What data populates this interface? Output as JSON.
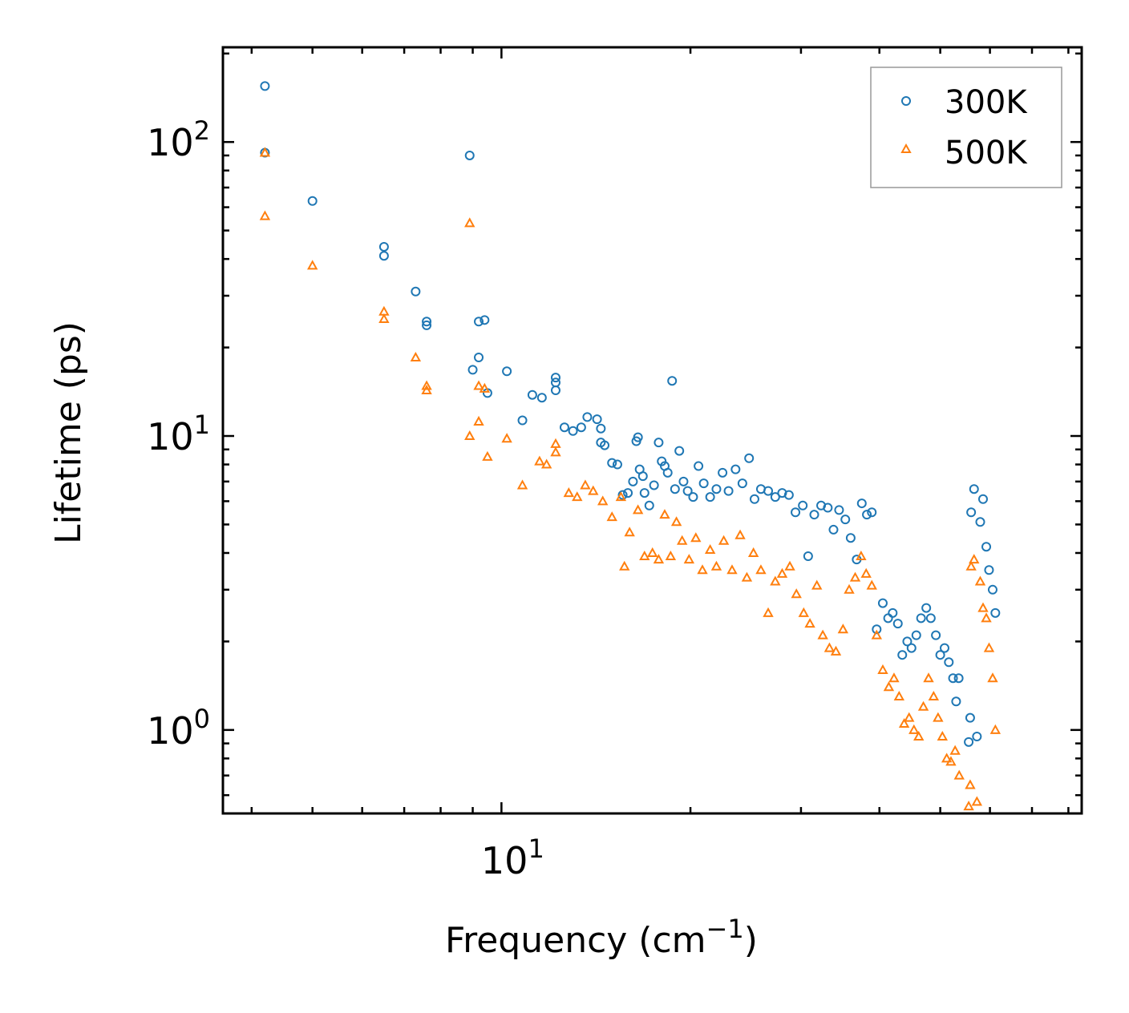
{
  "chart_data": {
    "type": "scatter",
    "title": "",
    "xlabel": "Frequency (cm",
    "xlabel_sup": "−1",
    "xlabel_close": ")",
    "ylabel": "Lifetime (ps)",
    "xscale": "log",
    "yscale": "log",
    "xlim": [
      3.6,
      84
    ],
    "ylim": [
      0.52,
      210
    ],
    "x_ticks": [
      {
        "base": "10",
        "exp": "1",
        "value": 10
      }
    ],
    "y_ticks": [
      {
        "base": "10",
        "exp": "0",
        "value": 1
      },
      {
        "base": "10",
        "exp": "1",
        "value": 10
      },
      {
        "base": "10",
        "exp": "2",
        "value": 100
      }
    ],
    "legend_position": "top-right",
    "series": [
      {
        "name": "300K",
        "color": "#1f77b4",
        "marker": "circle",
        "points": [
          [
            4.2,
            155
          ],
          [
            4.2,
            92
          ],
          [
            5.0,
            63
          ],
          [
            6.5,
            44
          ],
          [
            6.5,
            41
          ],
          [
            7.3,
            31
          ],
          [
            7.6,
            24.5
          ],
          [
            7.6,
            23.8
          ],
          [
            8.9,
            90
          ],
          [
            9.2,
            24.5
          ],
          [
            9.4,
            24.8
          ],
          [
            9.2,
            18.5
          ],
          [
            9.0,
            16.8
          ],
          [
            9.5,
            14
          ],
          [
            10.2,
            16.6
          ],
          [
            10.8,
            11.3
          ],
          [
            11.2,
            13.8
          ],
          [
            11.6,
            13.5
          ],
          [
            12.2,
            15.8
          ],
          [
            12.2,
            15.2
          ],
          [
            12.2,
            14.3
          ],
          [
            12.6,
            10.7
          ],
          [
            13.0,
            10.4
          ],
          [
            13.4,
            10.7
          ],
          [
            13.7,
            11.6
          ],
          [
            14.2,
            11.4
          ],
          [
            14.4,
            10.6
          ],
          [
            14.4,
            9.5
          ],
          [
            14.6,
            9.3
          ],
          [
            15.0,
            8.1
          ],
          [
            15.3,
            8.0
          ],
          [
            15.6,
            6.3
          ],
          [
            15.9,
            6.4
          ],
          [
            16.2,
            7.0
          ],
          [
            16.4,
            9.6
          ],
          [
            16.5,
            9.9
          ],
          [
            16.6,
            7.7
          ],
          [
            16.8,
            7.3
          ],
          [
            16.9,
            6.4
          ],
          [
            17.2,
            5.8
          ],
          [
            17.5,
            6.8
          ],
          [
            17.8,
            9.5
          ],
          [
            18.0,
            8.2
          ],
          [
            18.2,
            7.9
          ],
          [
            18.4,
            7.5
          ],
          [
            18.7,
            15.4
          ],
          [
            18.9,
            6.6
          ],
          [
            19.2,
            8.9
          ],
          [
            19.5,
            7.0
          ],
          [
            19.8,
            6.5
          ],
          [
            20.2,
            6.2
          ],
          [
            20.6,
            7.9
          ],
          [
            21.0,
            6.9
          ],
          [
            21.5,
            6.2
          ],
          [
            22.0,
            6.6
          ],
          [
            22.5,
            7.5
          ],
          [
            23.0,
            6.5
          ],
          [
            23.6,
            7.7
          ],
          [
            24.2,
            6.9
          ],
          [
            24.8,
            8.4
          ],
          [
            25.3,
            6.1
          ],
          [
            25.9,
            6.6
          ],
          [
            26.6,
            6.5
          ],
          [
            27.3,
            6.2
          ],
          [
            28.0,
            6.4
          ],
          [
            28.7,
            6.3
          ],
          [
            29.4,
            5.5
          ],
          [
            30.2,
            5.8
          ],
          [
            30.8,
            3.9
          ],
          [
            31.5,
            5.4
          ],
          [
            32.3,
            5.8
          ],
          [
            33.1,
            5.7
          ],
          [
            33.8,
            4.8
          ],
          [
            34.5,
            5.6
          ],
          [
            35.3,
            5.2
          ],
          [
            36.0,
            4.5
          ],
          [
            36.8,
            3.8
          ],
          [
            37.5,
            5.9
          ],
          [
            38.2,
            5.4
          ],
          [
            38.9,
            5.5
          ],
          [
            39.6,
            2.2
          ],
          [
            40.5,
            2.7
          ],
          [
            41.3,
            2.4
          ],
          [
            42.0,
            2.5
          ],
          [
            42.8,
            2.3
          ],
          [
            43.5,
            1.8
          ],
          [
            44.3,
            2.0
          ],
          [
            45.0,
            1.9
          ],
          [
            45.8,
            2.1
          ],
          [
            46.6,
            2.4
          ],
          [
            47.5,
            2.6
          ],
          [
            48.3,
            2.4
          ],
          [
            49.2,
            2.1
          ],
          [
            50.0,
            1.8
          ],
          [
            50.8,
            1.9
          ],
          [
            51.6,
            1.7
          ],
          [
            52.4,
            1.5
          ],
          [
            53.0,
            1.25
          ],
          [
            53.5,
            1.5
          ],
          [
            55.5,
            0.91
          ],
          [
            55.8,
            1.1
          ],
          [
            56.0,
            5.5
          ],
          [
            56.6,
            6.6
          ],
          [
            57.2,
            0.95
          ],
          [
            57.9,
            5.1
          ],
          [
            58.5,
            6.1
          ],
          [
            59.2,
            4.2
          ],
          [
            59.8,
            3.5
          ],
          [
            60.6,
            3.0
          ],
          [
            61.2,
            2.5
          ]
        ]
      },
      {
        "name": "500K",
        "color": "#ff7f0e",
        "marker": "triangle",
        "points": [
          [
            4.2,
            92
          ],
          [
            4.2,
            56
          ],
          [
            5.0,
            38
          ],
          [
            6.5,
            26.5
          ],
          [
            6.5,
            25
          ],
          [
            7.3,
            18.5
          ],
          [
            7.6,
            14.8
          ],
          [
            7.6,
            14.3
          ],
          [
            8.9,
            53
          ],
          [
            9.2,
            14.8
          ],
          [
            9.4,
            14.5
          ],
          [
            9.2,
            11.2
          ],
          [
            8.9,
            10.0
          ],
          [
            9.5,
            8.5
          ],
          [
            10.2,
            9.8
          ],
          [
            10.8,
            6.8
          ],
          [
            11.5,
            8.2
          ],
          [
            11.8,
            8.0
          ],
          [
            12.2,
            9.4
          ],
          [
            12.2,
            8.8
          ],
          [
            12.8,
            6.4
          ],
          [
            13.2,
            6.2
          ],
          [
            13.6,
            6.8
          ],
          [
            14.0,
            6.5
          ],
          [
            14.5,
            6.0
          ],
          [
            15.0,
            5.3
          ],
          [
            15.5,
            6.2
          ],
          [
            15.7,
            3.6
          ],
          [
            16.0,
            4.7
          ],
          [
            16.5,
            5.6
          ],
          [
            16.9,
            3.9
          ],
          [
            17.4,
            4.0
          ],
          [
            17.8,
            3.8
          ],
          [
            18.2,
            5.4
          ],
          [
            18.6,
            3.9
          ],
          [
            19.0,
            5.1
          ],
          [
            19.4,
            4.4
          ],
          [
            19.9,
            3.8
          ],
          [
            20.4,
            4.5
          ],
          [
            20.9,
            3.5
          ],
          [
            21.5,
            4.1
          ],
          [
            22.0,
            3.6
          ],
          [
            22.6,
            4.4
          ],
          [
            23.3,
            3.5
          ],
          [
            24.0,
            4.6
          ],
          [
            24.6,
            3.3
          ],
          [
            25.2,
            4.0
          ],
          [
            25.9,
            3.5
          ],
          [
            26.6,
            2.5
          ],
          [
            27.3,
            3.2
          ],
          [
            28.0,
            3.4
          ],
          [
            28.8,
            3.6
          ],
          [
            29.5,
            2.9
          ],
          [
            30.3,
            2.5
          ],
          [
            31.0,
            2.3
          ],
          [
            31.8,
            3.1
          ],
          [
            32.5,
            2.1
          ],
          [
            33.3,
            1.9
          ],
          [
            34.1,
            1.85
          ],
          [
            35.0,
            2.2
          ],
          [
            35.8,
            3.0
          ],
          [
            36.6,
            3.3
          ],
          [
            37.4,
            3.9
          ],
          [
            38.1,
            3.4
          ],
          [
            38.9,
            3.1
          ],
          [
            39.6,
            2.1
          ],
          [
            40.5,
            1.6
          ],
          [
            41.4,
            1.4
          ],
          [
            42.2,
            1.5
          ],
          [
            43.0,
            1.3
          ],
          [
            43.8,
            1.05
          ],
          [
            44.6,
            1.1
          ],
          [
            45.4,
            1.0
          ],
          [
            46.2,
            0.95
          ],
          [
            47.0,
            1.2
          ],
          [
            47.9,
            1.5
          ],
          [
            48.8,
            1.3
          ],
          [
            49.6,
            1.1
          ],
          [
            50.4,
            0.95
          ],
          [
            51.2,
            0.8
          ],
          [
            52.0,
            0.78
          ],
          [
            52.8,
            0.85
          ],
          [
            53.6,
            0.7
          ],
          [
            55.5,
            0.55
          ],
          [
            55.8,
            0.65
          ],
          [
            56.0,
            3.6
          ],
          [
            56.6,
            3.8
          ],
          [
            57.2,
            0.57
          ],
          [
            57.9,
            3.2
          ],
          [
            58.5,
            2.6
          ],
          [
            59.2,
            2.4
          ],
          [
            59.8,
            1.9
          ],
          [
            60.6,
            1.5
          ],
          [
            61.2,
            1.0
          ]
        ]
      }
    ]
  }
}
